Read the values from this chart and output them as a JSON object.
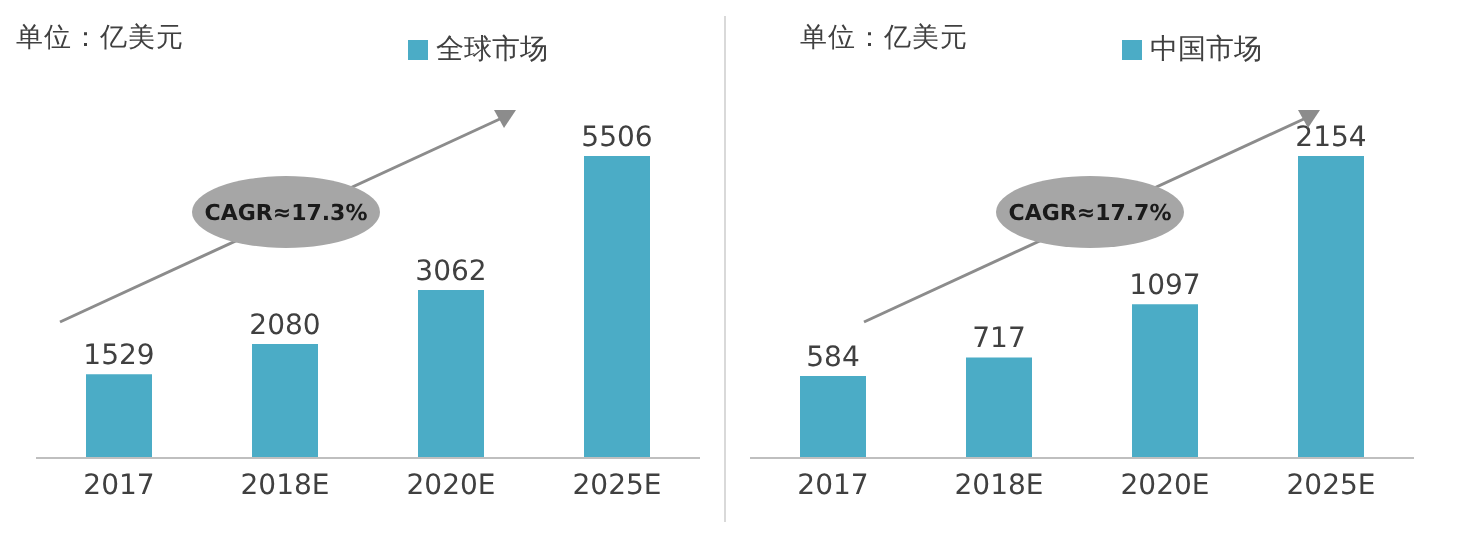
{
  "chart_data": [
    {
      "type": "bar",
      "categories": [
        "2017",
        "2018E",
        "2020E",
        "2025E"
      ],
      "series": [
        {
          "name": "全球市场",
          "color": "#4bacc6",
          "values": [
            1529,
            2080,
            3062,
            5506
          ]
        }
      ],
      "data_labels": true,
      "legend": "top",
      "annotations": [
        "单位：亿美元",
        "CAGR≈17.3%"
      ]
    },
    {
      "type": "bar",
      "categories": [
        "2017",
        "2018E",
        "2020E",
        "2025E"
      ],
      "series": [
        {
          "name": "中国市场",
          "color": "#4bacc6",
          "values": [
            584,
            717,
            1097,
            2154
          ]
        }
      ],
      "data_labels": true,
      "legend": "top",
      "annotations": [
        "单位：亿美元",
        "CAGR≈17.7%"
      ]
    }
  ]
}
